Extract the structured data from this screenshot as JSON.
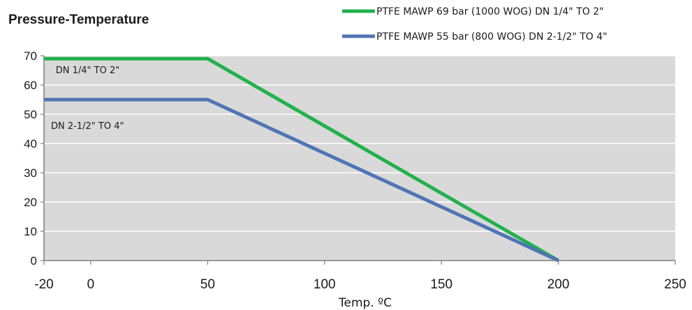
{
  "chart_data": {
    "type": "line",
    "title": "Pressure-Temperature",
    "xlabel": "Temp. ºC",
    "ylabel": "",
    "xlim": [
      -20,
      250
    ],
    "ylim": [
      0,
      70
    ],
    "x_ticks": [
      -20,
      0,
      50,
      100,
      150,
      200,
      250
    ],
    "y_ticks": [
      0,
      10,
      20,
      30,
      40,
      50,
      60,
      70
    ],
    "grid": "horizontal",
    "plot_background": "#d9d9d9",
    "legend_position": "top-right",
    "series": [
      {
        "name": "PTFE MAWP 69 bar (1000 WOG) DN 1/4\" TO 2\"",
        "color": "#22b14c",
        "points": [
          [
            -20,
            69
          ],
          [
            50,
            69
          ],
          [
            200,
            0
          ]
        ]
      },
      {
        "name": "PTFE MAWP 55 bar (800 WOG) DN 2-1/2\" TO 4\"",
        "color": "#4f75b5",
        "points": [
          [
            -20,
            55
          ],
          [
            50,
            55
          ],
          [
            200,
            0
          ]
        ]
      }
    ],
    "annotations": [
      {
        "text": "DN 1/4\" TO 2\"",
        "x": -15,
        "y": 64
      },
      {
        "text": "DN 2-1/2\" TO 4\"",
        "x": -17,
        "y": 45
      }
    ]
  }
}
